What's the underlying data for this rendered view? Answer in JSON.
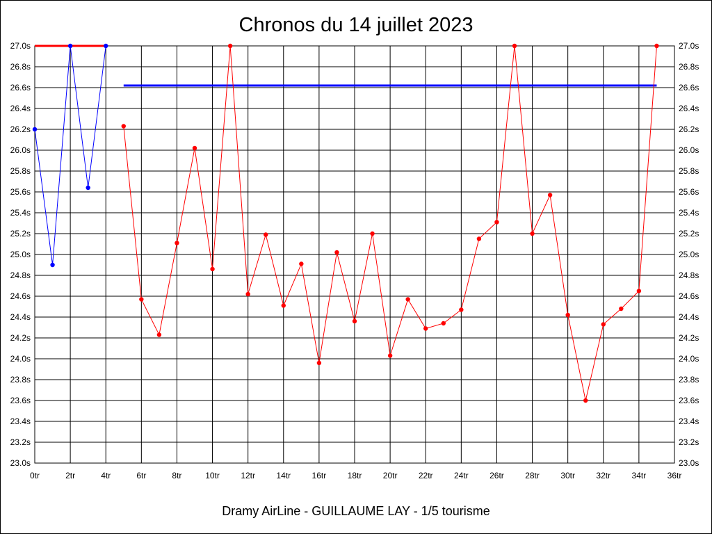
{
  "chart_data": {
    "type": "line",
    "title": "Chronos du 14 juillet 2023",
    "footer": "Dramy AirLine - GUILLAUME LAY - 1/5 tourisme",
    "xlabel": "",
    "ylabel": "",
    "xlim": [
      0,
      36
    ],
    "ylim": [
      23.0,
      27.0
    ],
    "x_ticks": [
      0,
      2,
      4,
      6,
      8,
      10,
      12,
      14,
      16,
      18,
      20,
      22,
      24,
      26,
      28,
      30,
      32,
      34,
      36
    ],
    "x_tick_suffix": "tr",
    "y_ticks": [
      23.0,
      23.2,
      23.4,
      23.6,
      23.8,
      24.0,
      24.2,
      24.4,
      24.6,
      24.8,
      25.0,
      25.2,
      25.4,
      25.6,
      25.8,
      26.0,
      26.2,
      26.4,
      26.6,
      26.8,
      27.0
    ],
    "y_tick_suffix": "s",
    "x_gridlines": [
      2,
      4,
      6,
      8,
      10,
      12,
      14,
      16,
      18,
      20,
      22,
      24,
      26,
      28,
      30,
      32,
      34
    ],
    "y_gridlines": [
      23.2,
      23.4,
      23.6,
      23.8,
      24.0,
      24.2,
      24.4,
      24.6,
      24.8,
      25.0,
      25.2,
      25.4,
      25.6,
      25.8,
      26.0,
      26.2,
      26.4,
      26.6,
      26.8
    ],
    "grid": true,
    "y_axis_both_sides": true,
    "series": [
      {
        "color": "#0000ff",
        "x": [
          0,
          1,
          2,
          3,
          4
        ],
        "y": [
          26.2,
          24.9,
          27.0,
          25.64,
          27.0
        ]
      },
      {
        "color": "#ff0000",
        "x": [
          5,
          6,
          7,
          8,
          9,
          10,
          11,
          12,
          13,
          14,
          15,
          16,
          17,
          18,
          19,
          20,
          21,
          22,
          23,
          24,
          25,
          26,
          27,
          28,
          29,
          30,
          31,
          32,
          33,
          34,
          35
        ],
        "y": [
          26.23,
          24.57,
          24.23,
          25.11,
          26.02,
          24.86,
          27.0,
          24.62,
          25.19,
          24.51,
          24.91,
          23.96,
          25.02,
          24.36,
          25.2,
          24.03,
          24.57,
          24.29,
          24.34,
          24.47,
          25.15,
          25.31,
          27.0,
          25.2,
          25.57,
          24.42,
          23.6,
          24.33,
          24.48,
          24.65,
          27.0
        ]
      }
    ],
    "reference_lines": [
      {
        "color": "#ff0000",
        "x": [
          0,
          4
        ],
        "y": 27.0
      },
      {
        "color": "#0000ff",
        "x": [
          5,
          35
        ],
        "y": 26.62
      }
    ]
  }
}
